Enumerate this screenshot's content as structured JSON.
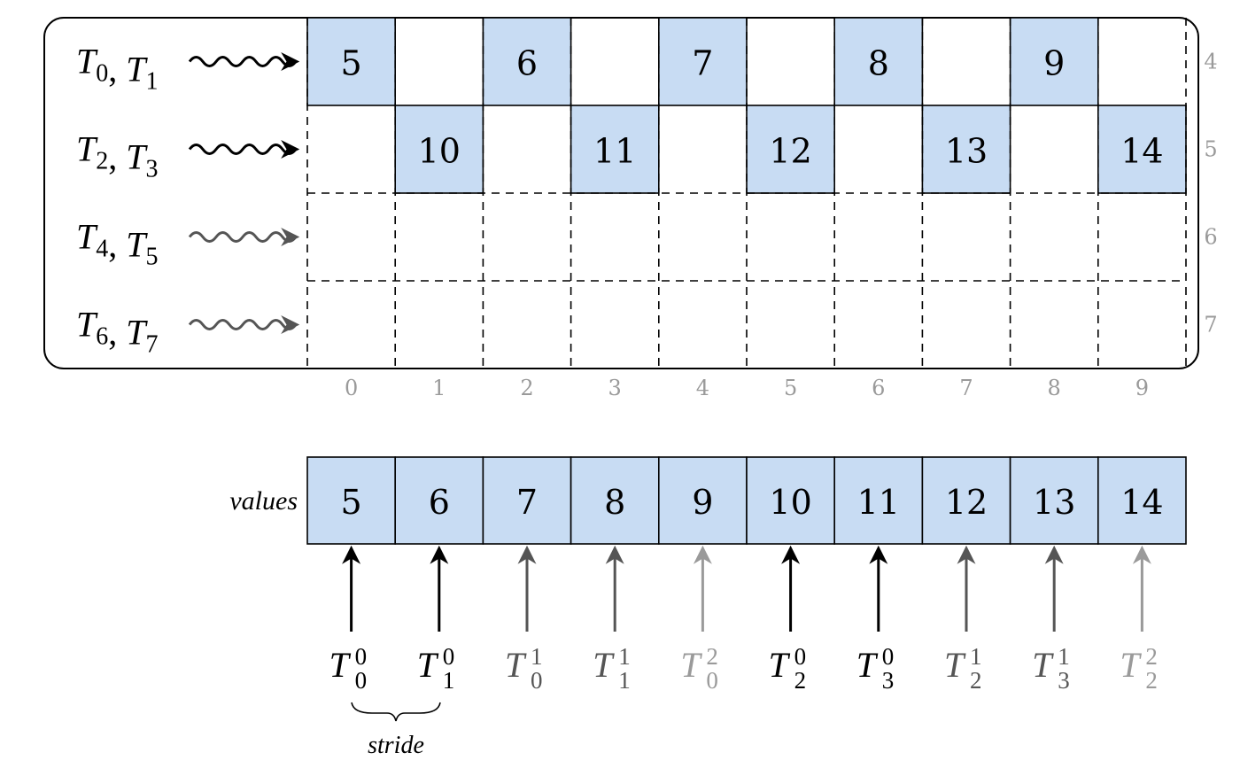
{
  "colors": {
    "cell_fill": "#c8dcf3",
    "line": "#000000",
    "label_gray": "#9a9a9a",
    "arrow_dark": "#000000",
    "arrow_mid": "#555555",
    "arrow_light": "#9a9a9a"
  },
  "matrix": {
    "rows": [
      {
        "threads": [
          {
            "base": "T",
            "sub": "0"
          },
          {
            "base": "T",
            "sub": "1"
          }
        ],
        "arrow_shade": "dark",
        "row_index": "4"
      },
      {
        "threads": [
          {
            "base": "T",
            "sub": "2"
          },
          {
            "base": "T",
            "sub": "3"
          }
        ],
        "arrow_shade": "dark",
        "row_index": "5"
      },
      {
        "threads": [
          {
            "base": "T",
            "sub": "4"
          },
          {
            "base": "T",
            "sub": "5"
          }
        ],
        "arrow_shade": "mid",
        "row_index": "6"
      },
      {
        "threads": [
          {
            "base": "T",
            "sub": "6"
          },
          {
            "base": "T",
            "sub": "7"
          }
        ],
        "arrow_shade": "mid",
        "row_index": "7"
      }
    ],
    "cells": [
      {
        "row": 0,
        "col": 0,
        "value": "5"
      },
      {
        "row": 0,
        "col": 2,
        "value": "6"
      },
      {
        "row": 0,
        "col": 4,
        "value": "7"
      },
      {
        "row": 0,
        "col": 6,
        "value": "8"
      },
      {
        "row": 0,
        "col": 8,
        "value": "9"
      },
      {
        "row": 1,
        "col": 1,
        "value": "10"
      },
      {
        "row": 1,
        "col": 3,
        "value": "11"
      },
      {
        "row": 1,
        "col": 5,
        "value": "12"
      },
      {
        "row": 1,
        "col": 7,
        "value": "13"
      },
      {
        "row": 1,
        "col": 9,
        "value": "14"
      }
    ],
    "col_indices": [
      "0",
      "1",
      "2",
      "3",
      "4",
      "5",
      "6",
      "7",
      "8",
      "9"
    ]
  },
  "values_array": {
    "label": "values",
    "values": [
      "5",
      "6",
      "7",
      "8",
      "9",
      "10",
      "11",
      "12",
      "13",
      "14"
    ],
    "threads": [
      {
        "base": "T",
        "sub": "0",
        "sup": "0",
        "shade": "dark"
      },
      {
        "base": "T",
        "sub": "1",
        "sup": "0",
        "shade": "dark"
      },
      {
        "base": "T",
        "sub": "0",
        "sup": "1",
        "shade": "mid"
      },
      {
        "base": "T",
        "sub": "1",
        "sup": "1",
        "shade": "mid"
      },
      {
        "base": "T",
        "sub": "0",
        "sup": "2",
        "shade": "light"
      },
      {
        "base": "T",
        "sub": "2",
        "sup": "0",
        "shade": "dark"
      },
      {
        "base": "T",
        "sub": "3",
        "sup": "0",
        "shade": "dark"
      },
      {
        "base": "T",
        "sub": "2",
        "sup": "1",
        "shade": "mid"
      },
      {
        "base": "T",
        "sub": "3",
        "sup": "1",
        "shade": "mid"
      },
      {
        "base": "T",
        "sub": "2",
        "sup": "2",
        "shade": "light"
      }
    ]
  },
  "stride": {
    "label": "stride"
  }
}
